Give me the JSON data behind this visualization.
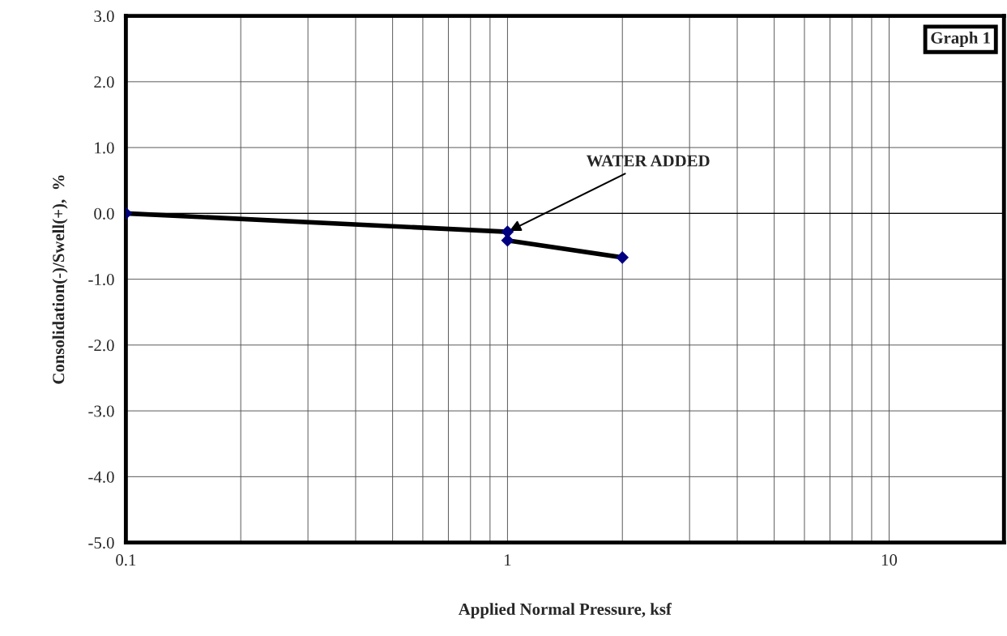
{
  "chart_data": {
    "type": "line",
    "xlabel": "Applied Normal Pressure, ksf",
    "ylabel": "Consolidation(-)/Swell(+),  %",
    "series": [
      {
        "color": "#000000",
        "x": [
          0.1,
          1,
          1,
          2
        ],
        "values": [
          0.0,
          -0.28,
          -0.41,
          -0.67
        ]
      }
    ],
    "marker": "diamond",
    "line_style": "solid",
    "log": "x",
    "grid": true,
    "xlim": [
      0.1,
      20
    ],
    "xticks": [
      0.1,
      1,
      10
    ],
    "ylim": [
      -5.0,
      3.0
    ],
    "yticks": [
      {
        "value": -5,
        "label": "-5.0"
      },
      {
        "value": -4,
        "label": "-4.0"
      },
      {
        "value": -3,
        "label": "-3.0"
      },
      {
        "value": -2,
        "label": "-2.0"
      },
      {
        "value": -1,
        "label": "-1.0"
      },
      {
        "value": 0,
        "label": "0.0"
      },
      {
        "value": 1,
        "label": "1.0"
      },
      {
        "value": 2,
        "label": "2.0"
      },
      {
        "value": 3,
        "label": "3.0"
      }
    ],
    "annotations": [
      {
        "text": "WATER ADDED",
        "x": 1,
        "y": -0.28
      },
      "Graph 1"
    ]
  }
}
